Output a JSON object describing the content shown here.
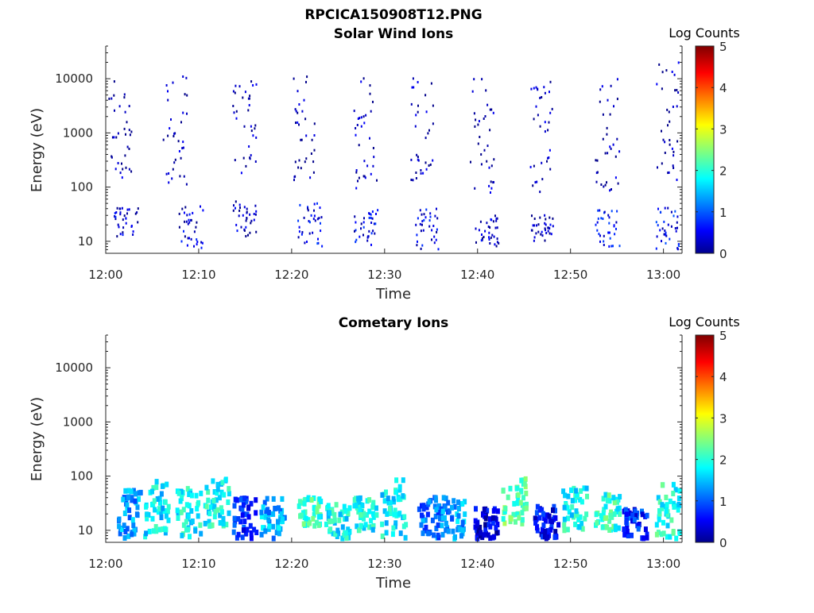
{
  "figure": {
    "title": "RPCICA150908T12.PNG"
  },
  "colorbar": {
    "label": "Log Counts",
    "ticks": [
      "0",
      "1",
      "2",
      "3",
      "4",
      "5"
    ],
    "range": [
      0,
      5
    ],
    "colormap": "jet"
  },
  "chart_data": [
    {
      "type": "heatmap",
      "title": "Solar Wind Ions",
      "xlabel": "Time",
      "ylabel": "Energy (eV)",
      "x_ticks": [
        "12:00",
        "12:10",
        "12:20",
        "12:30",
        "12:40",
        "12:50",
        "13:00"
      ],
      "y_ticks": [
        "10",
        "100",
        "1000",
        "10000"
      ],
      "y_scale": "log",
      "ylim": [
        6,
        40000
      ],
      "xlim": [
        "12:00",
        "13:02"
      ],
      "colorbar_range": [
        0,
        5
      ],
      "clusters": [
        {
          "t": 1.5,
          "e_lo": 150,
          "e_hi": 12000,
          "level": 0.2
        },
        {
          "t": 2.2,
          "e_lo": 12,
          "e_hi": 45,
          "level": 0.4
        },
        {
          "t": 7.5,
          "e_lo": 80,
          "e_hi": 11000,
          "level": 0.2
        },
        {
          "t": 9.2,
          "e_lo": 7,
          "e_hi": 45,
          "level": 0.4
        },
        {
          "t": 15,
          "e_lo": 170,
          "e_hi": 9000,
          "level": 0.2
        },
        {
          "t": 15,
          "e_lo": 12,
          "e_hi": 60,
          "level": 0.3
        },
        {
          "t": 21.5,
          "e_lo": 120,
          "e_hi": 13000,
          "level": 0.2
        },
        {
          "t": 22,
          "e_lo": 8,
          "e_hi": 50,
          "level": 0.6
        },
        {
          "t": 28,
          "e_lo": 80,
          "e_hi": 11000,
          "level": 0.2
        },
        {
          "t": 28,
          "e_lo": 8,
          "e_hi": 40,
          "level": 0.5
        },
        {
          "t": 34,
          "e_lo": 110,
          "e_hi": 13000,
          "level": 0.2
        },
        {
          "t": 34.5,
          "e_lo": 6,
          "e_hi": 40,
          "level": 0.5
        },
        {
          "t": 40.5,
          "e_lo": 60,
          "e_hi": 11000,
          "level": 0.2
        },
        {
          "t": 41,
          "e_lo": 8,
          "e_hi": 30,
          "level": 0.3
        },
        {
          "t": 47,
          "e_lo": 60,
          "e_hi": 11000,
          "level": 0.2
        },
        {
          "t": 47,
          "e_lo": 10,
          "e_hi": 30,
          "level": 0.3
        },
        {
          "t": 54,
          "e_lo": 60,
          "e_hi": 11000,
          "level": 0.2
        },
        {
          "t": 54,
          "e_lo": 8,
          "e_hi": 40,
          "level": 0.6
        },
        {
          "t": 60.5,
          "e_lo": 120,
          "e_hi": 25000,
          "level": 0.2
        },
        {
          "t": 60.5,
          "e_lo": 7,
          "e_hi": 45,
          "level": 0.6
        }
      ]
    },
    {
      "type": "heatmap",
      "title": "Cometary Ions",
      "xlabel": "Time",
      "ylabel": "Energy (eV)",
      "x_ticks": [
        "12:00",
        "12:10",
        "12:20",
        "12:30",
        "12:40",
        "12:50",
        "13:00"
      ],
      "y_ticks": [
        "10",
        "100",
        "1000",
        "10000"
      ],
      "y_scale": "log",
      "ylim": [
        6,
        40000
      ],
      "xlim": [
        "12:00",
        "13:02"
      ],
      "colorbar_range": [
        0,
        5
      ],
      "clusters": [
        {
          "t": 2.5,
          "e_lo": 7,
          "e_hi": 60,
          "level": 1.4
        },
        {
          "t": 5.5,
          "e_lo": 7,
          "e_hi": 80,
          "level": 1.8
        },
        {
          "t": 9,
          "e_lo": 7,
          "e_hi": 60,
          "level": 1.9
        },
        {
          "t": 12,
          "e_lo": 12,
          "e_hi": 90,
          "level": 1.9
        },
        {
          "t": 15,
          "e_lo": 7,
          "e_hi": 40,
          "level": 0.8
        },
        {
          "t": 18,
          "e_lo": 7,
          "e_hi": 40,
          "level": 1.5
        },
        {
          "t": 22,
          "e_lo": 12,
          "e_hi": 40,
          "level": 2.1
        },
        {
          "t": 25,
          "e_lo": 7,
          "e_hi": 30,
          "level": 1.9
        },
        {
          "t": 28,
          "e_lo": 10,
          "e_hi": 40,
          "level": 1.9
        },
        {
          "t": 31,
          "e_lo": 7,
          "e_hi": 90,
          "level": 1.8
        },
        {
          "t": 35,
          "e_lo": 7,
          "e_hi": 40,
          "level": 1.2
        },
        {
          "t": 37.5,
          "e_lo": 7,
          "e_hi": 40,
          "level": 1.4
        },
        {
          "t": 41,
          "e_lo": 7,
          "e_hi": 25,
          "level": 0.5
        },
        {
          "t": 44,
          "e_lo": 12,
          "e_hi": 90,
          "level": 2.3
        },
        {
          "t": 47.5,
          "e_lo": 7,
          "e_hi": 30,
          "level": 0.6
        },
        {
          "t": 50.5,
          "e_lo": 10,
          "e_hi": 60,
          "level": 1.9
        },
        {
          "t": 54,
          "e_lo": 10,
          "e_hi": 50,
          "level": 2.1
        },
        {
          "t": 57,
          "e_lo": 7,
          "e_hi": 25,
          "level": 0.8
        },
        {
          "t": 60.5,
          "e_lo": 7,
          "e_hi": 80,
          "level": 2.0
        }
      ]
    }
  ]
}
